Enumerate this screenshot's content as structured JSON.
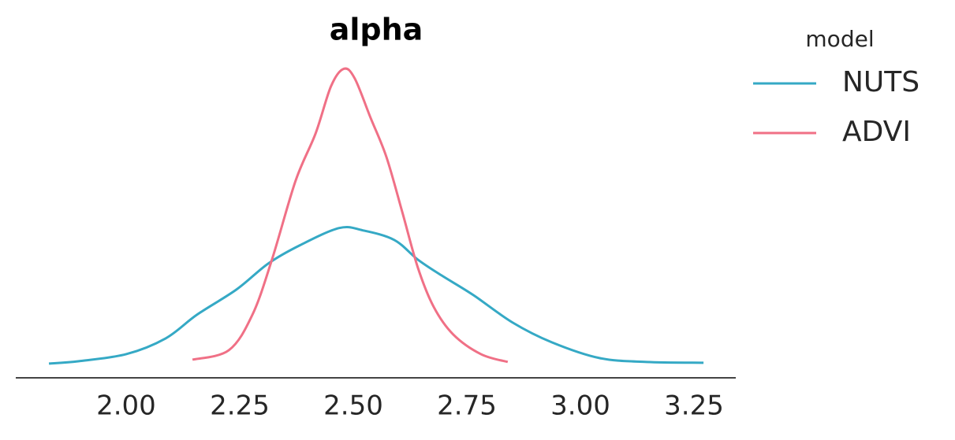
{
  "chart_data": {
    "type": "line",
    "title": "alpha",
    "xlim": [
      1.757,
      3.342
    ],
    "ylim": [
      -0.16,
      3.42
    ],
    "xticks": [
      {
        "value": 2.0,
        "label": "2.00"
      },
      {
        "value": 2.25,
        "label": "2.25"
      },
      {
        "value": 2.5,
        "label": "2.50"
      },
      {
        "value": 2.75,
        "label": "2.75"
      },
      {
        "value": 3.0,
        "label": "3.00"
      },
      {
        "value": 3.25,
        "label": "3.25"
      }
    ],
    "legend": "outside-right",
    "legend_title": "model",
    "series": [
      {
        "name": "NUTS",
        "color": "#35a9c5",
        "x": [
          1.83,
          1.896,
          2.0,
          2.087,
          2.156,
          2.243,
          2.313,
          2.382,
          2.469,
          2.521,
          2.59,
          2.642,
          2.694,
          2.764,
          2.851,
          2.937,
          3.042,
          3.146,
          3.271
        ],
        "values": [
          0.0,
          0.027,
          0.106,
          0.283,
          0.549,
          0.832,
          1.124,
          1.327,
          1.522,
          1.496,
          1.389,
          1.168,
          0.991,
          0.77,
          0.46,
          0.239,
          0.062,
          0.018,
          0.009
        ]
      },
      {
        "name": "ADVI",
        "color": "#f07086",
        "x": [
          2.146,
          2.226,
          2.278,
          2.321,
          2.373,
          2.417,
          2.451,
          2.479,
          2.503,
          2.538,
          2.573,
          2.608,
          2.642,
          2.677,
          2.72,
          2.781,
          2.84
        ],
        "values": [
          0.044,
          0.15,
          0.549,
          1.168,
          2.053,
          2.584,
          3.115,
          3.31,
          3.204,
          2.761,
          2.319,
          1.699,
          1.08,
          0.637,
          0.327,
          0.106,
          0.018
        ]
      }
    ]
  }
}
